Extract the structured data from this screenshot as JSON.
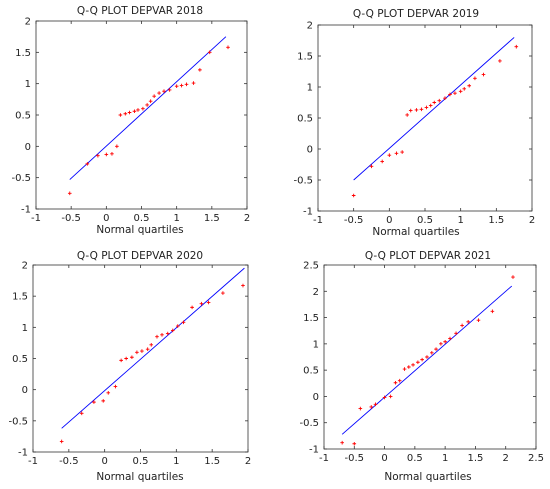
{
  "chart_data": [
    {
      "type": "scatter",
      "title": "Q-Q PLOT DEPVAR 2018",
      "xlabel": "Normal quartiles",
      "ylabel": "",
      "xlim": [
        -1,
        2
      ],
      "ylim": [
        -1,
        2
      ],
      "xticks": [
        "-1",
        "-0.5",
        "0",
        "0.5",
        "1",
        "1.5",
        "2"
      ],
      "yticks": [
        "-1",
        "-0.5",
        "0",
        "0.5",
        "1",
        "1.5",
        "2"
      ],
      "grid": false,
      "line": {
        "x1": -0.52,
        "y1": -0.53,
        "x2": 1.7,
        "y2": 1.75
      },
      "points": [
        {
          "x": -0.52,
          "y": -0.75
        },
        {
          "x": -0.27,
          "y": -0.28
        },
        {
          "x": -0.12,
          "y": -0.15
        },
        {
          "x": 0.0,
          "y": -0.13
        },
        {
          "x": 0.08,
          "y": -0.12
        },
        {
          "x": 0.15,
          "y": 0.0
        },
        {
          "x": 0.2,
          "y": 0.5
        },
        {
          "x": 0.27,
          "y": 0.52
        },
        {
          "x": 0.33,
          "y": 0.54
        },
        {
          "x": 0.4,
          "y": 0.56
        },
        {
          "x": 0.45,
          "y": 0.58
        },
        {
          "x": 0.52,
          "y": 0.6
        },
        {
          "x": 0.58,
          "y": 0.66
        },
        {
          "x": 0.63,
          "y": 0.72
        },
        {
          "x": 0.68,
          "y": 0.8
        },
        {
          "x": 0.75,
          "y": 0.85
        },
        {
          "x": 0.82,
          "y": 0.88
        },
        {
          "x": 0.9,
          "y": 0.9
        },
        {
          "x": 1.0,
          "y": 0.96
        },
        {
          "x": 1.07,
          "y": 0.97
        },
        {
          "x": 1.14,
          "y": 0.99
        },
        {
          "x": 1.24,
          "y": 1.01
        },
        {
          "x": 1.33,
          "y": 1.22
        },
        {
          "x": 1.47,
          "y": 1.5
        },
        {
          "x": 1.73,
          "y": 1.58
        }
      ]
    },
    {
      "type": "scatter",
      "title": "Q-Q PLOT DEPVAR 2019",
      "xlabel": "Normal quartiles",
      "ylabel": "",
      "xlim": [
        -1,
        2
      ],
      "ylim": [
        -1,
        2
      ],
      "xticks": [
        "-1",
        "-0.5",
        "0",
        "0.5",
        "1",
        "1.5",
        "2"
      ],
      "yticks": [
        "-1",
        "-0.5",
        "0",
        "0.5",
        "1",
        "1.5",
        "2"
      ],
      "grid": false,
      "line": {
        "x1": -0.5,
        "y1": -0.5,
        "x2": 1.75,
        "y2": 1.8
      },
      "points": [
        {
          "x": -0.5,
          "y": -0.75
        },
        {
          "x": -0.25,
          "y": -0.28
        },
        {
          "x": -0.1,
          "y": -0.2
        },
        {
          "x": 0.0,
          "y": -0.1
        },
        {
          "x": 0.1,
          "y": -0.07
        },
        {
          "x": 0.18,
          "y": -0.05
        },
        {
          "x": 0.25,
          "y": 0.55
        },
        {
          "x": 0.3,
          "y": 0.62
        },
        {
          "x": 0.38,
          "y": 0.63
        },
        {
          "x": 0.45,
          "y": 0.64
        },
        {
          "x": 0.52,
          "y": 0.67
        },
        {
          "x": 0.58,
          "y": 0.7
        },
        {
          "x": 0.63,
          "y": 0.75
        },
        {
          "x": 0.7,
          "y": 0.78
        },
        {
          "x": 0.78,
          "y": 0.82
        },
        {
          "x": 0.85,
          "y": 0.88
        },
        {
          "x": 0.92,
          "y": 0.9
        },
        {
          "x": 1.0,
          "y": 0.93
        },
        {
          "x": 1.05,
          "y": 0.97
        },
        {
          "x": 1.12,
          "y": 1.02
        },
        {
          "x": 1.2,
          "y": 1.14
        },
        {
          "x": 1.32,
          "y": 1.2
        },
        {
          "x": 1.55,
          "y": 1.42
        },
        {
          "x": 1.78,
          "y": 1.65
        }
      ]
    },
    {
      "type": "scatter",
      "title": "Q-Q PLOT DEPVAR 2020",
      "xlabel": "Normal quartiles",
      "ylabel": "",
      "xlim": [
        -1,
        2
      ],
      "ylim": [
        -1,
        2
      ],
      "xticks": [
        "-1",
        "-0.5",
        "0",
        "0.5",
        "1",
        "1.5",
        "2"
      ],
      "yticks": [
        "-1",
        "-0.5",
        "0",
        "0.5",
        "1",
        "1.5",
        "2"
      ],
      "grid": false,
      "line": {
        "x1": -0.6,
        "y1": -0.62,
        "x2": 1.95,
        "y2": 1.95
      },
      "points": [
        {
          "x": -0.6,
          "y": -0.83
        },
        {
          "x": -0.32,
          "y": -0.38
        },
        {
          "x": -0.15,
          "y": -0.2
        },
        {
          "x": -0.02,
          "y": -0.18
        },
        {
          "x": 0.05,
          "y": -0.05
        },
        {
          "x": 0.15,
          "y": 0.05
        },
        {
          "x": 0.23,
          "y": 0.47
        },
        {
          "x": 0.3,
          "y": 0.5
        },
        {
          "x": 0.38,
          "y": 0.52
        },
        {
          "x": 0.45,
          "y": 0.6
        },
        {
          "x": 0.52,
          "y": 0.62
        },
        {
          "x": 0.6,
          "y": 0.65
        },
        {
          "x": 0.65,
          "y": 0.72
        },
        {
          "x": 0.73,
          "y": 0.85
        },
        {
          "x": 0.8,
          "y": 0.88
        },
        {
          "x": 0.88,
          "y": 0.9
        },
        {
          "x": 0.95,
          "y": 0.95
        },
        {
          "x": 1.02,
          "y": 1.02
        },
        {
          "x": 1.1,
          "y": 1.08
        },
        {
          "x": 1.22,
          "y": 1.32
        },
        {
          "x": 1.35,
          "y": 1.38
        },
        {
          "x": 1.45,
          "y": 1.4
        },
        {
          "x": 1.65,
          "y": 1.55
        },
        {
          "x": 1.93,
          "y": 1.67
        }
      ]
    },
    {
      "type": "scatter",
      "title": "Q-Q PLOT DEPVAR 2021",
      "xlabel": "Normal quartiles",
      "ylabel": "",
      "xlim": [
        -1,
        2.5
      ],
      "ylim": [
        -1,
        2.5
      ],
      "xticks": [
        "-1",
        "-0.5",
        "0",
        "0.5",
        "1",
        "1.5",
        "2",
        "2.5"
      ],
      "yticks": [
        "-1",
        "-0.5",
        "0",
        "0.5",
        "1",
        "1.5",
        "2",
        "2.5"
      ],
      "grid": false,
      "line": {
        "x1": -0.7,
        "y1": -0.72,
        "x2": 2.1,
        "y2": 2.1
      },
      "points": [
        {
          "x": -0.7,
          "y": -0.88
        },
        {
          "x": -0.5,
          "y": -0.9
        },
        {
          "x": -0.4,
          "y": -0.23
        },
        {
          "x": -0.22,
          "y": -0.2
        },
        {
          "x": -0.15,
          "y": -0.15
        },
        {
          "x": 0.0,
          "y": -0.02
        },
        {
          "x": 0.1,
          "y": 0.0
        },
        {
          "x": 0.18,
          "y": 0.26
        },
        {
          "x": 0.25,
          "y": 0.3
        },
        {
          "x": 0.33,
          "y": 0.52
        },
        {
          "x": 0.4,
          "y": 0.56
        },
        {
          "x": 0.47,
          "y": 0.6
        },
        {
          "x": 0.55,
          "y": 0.65
        },
        {
          "x": 0.62,
          "y": 0.7
        },
        {
          "x": 0.7,
          "y": 0.75
        },
        {
          "x": 0.78,
          "y": 0.83
        },
        {
          "x": 0.85,
          "y": 0.9
        },
        {
          "x": 0.93,
          "y": 1.0
        },
        {
          "x": 1.0,
          "y": 1.04
        },
        {
          "x": 1.08,
          "y": 1.1
        },
        {
          "x": 1.18,
          "y": 1.2
        },
        {
          "x": 1.28,
          "y": 1.35
        },
        {
          "x": 1.38,
          "y": 1.42
        },
        {
          "x": 1.55,
          "y": 1.45
        },
        {
          "x": 1.78,
          "y": 1.62
        },
        {
          "x": 2.12,
          "y": 2.27
        }
      ]
    }
  ],
  "colors": {
    "points": "#ff0000",
    "fit_line": "#0000ff",
    "axes": "#333333"
  }
}
